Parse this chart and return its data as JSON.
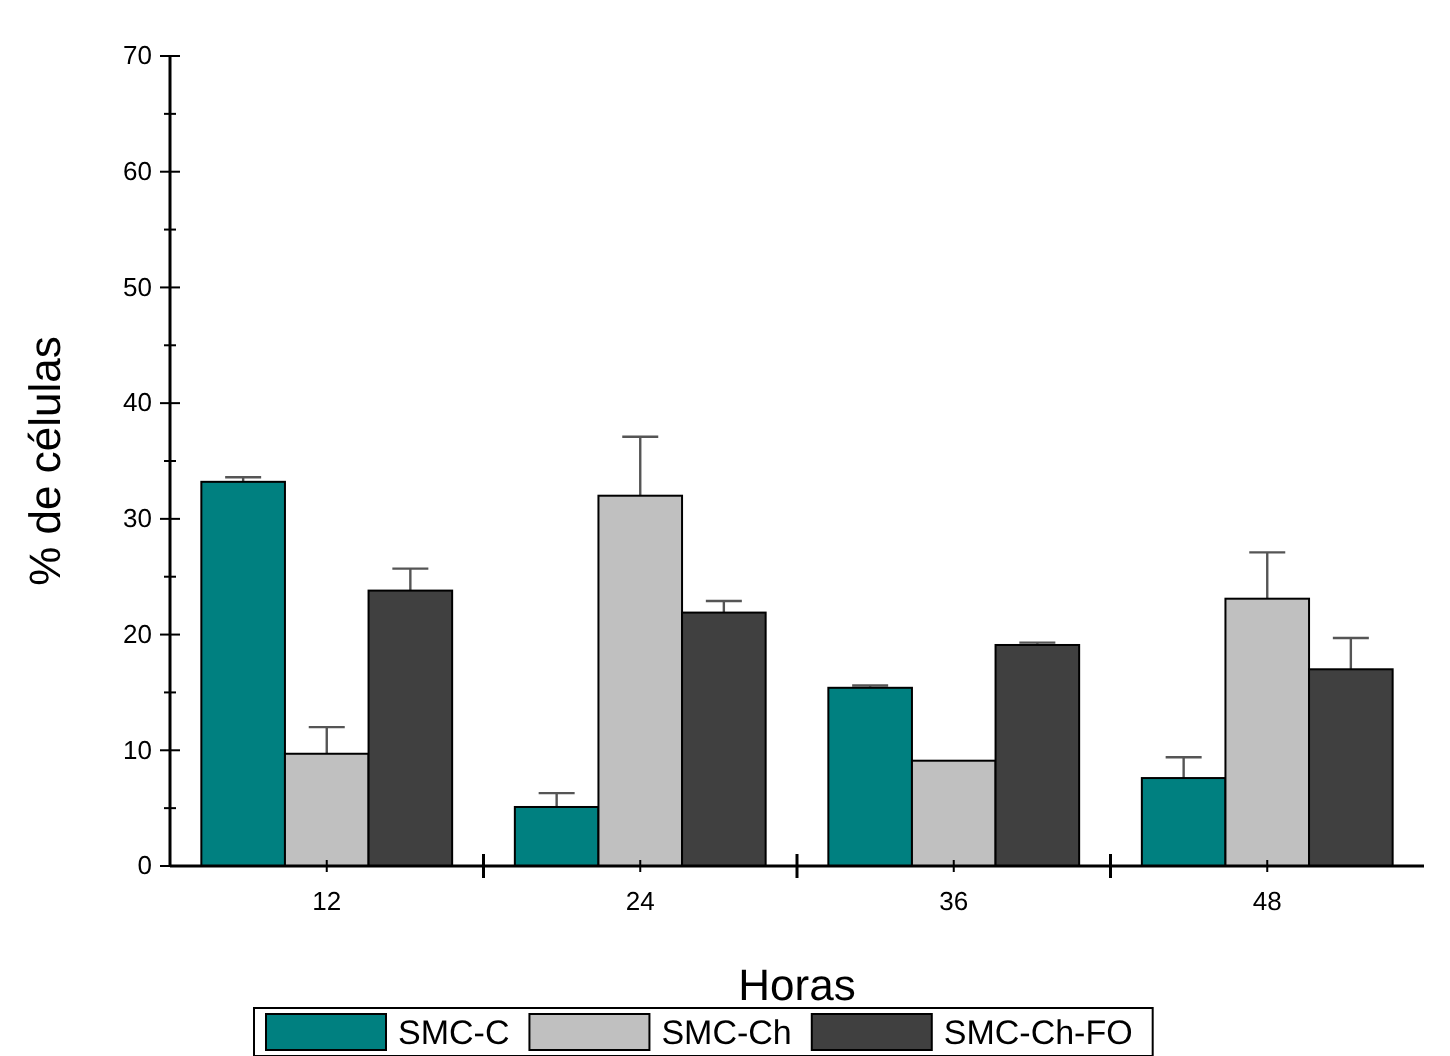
{
  "chart_data": {
    "type": "bar",
    "xlabel": "Horas",
    "ylabel": "% de células",
    "categories": [
      "12",
      "24",
      "36",
      "48"
    ],
    "series": [
      {
        "name": "SMC-C",
        "color": "#008080",
        "values": [
          33.2,
          5.1,
          15.4,
          7.6
        ],
        "errors": [
          0.4,
          1.2,
          0.2,
          1.8
        ]
      },
      {
        "name": "SMC-Ch",
        "color": "#c0c0c0",
        "values": [
          9.7,
          32.0,
          9.1,
          23.1
        ],
        "errors": [
          2.3,
          5.1,
          null,
          4.0
        ]
      },
      {
        "name": "SMC-Ch-FO",
        "color": "#404040",
        "values": [
          23.8,
          21.9,
          19.1,
          17.0
        ],
        "errors": [
          1.9,
          1.0,
          0.2,
          2.7
        ]
      }
    ],
    "ylim": [
      0,
      70
    ],
    "yticks": [
      0,
      {
        "value": 5,
        "label": null
      },
      10,
      {
        "value": 15,
        "label": null
      },
      20,
      {
        "value": 25,
        "label": null
      },
      30,
      {
        "value": 35,
        "label": null
      },
      40,
      {
        "value": 45,
        "label": null
      },
      50,
      {
        "value": 55,
        "label": null
      },
      60,
      {
        "value": 65,
        "label": null
      },
      70
    ],
    "grid": false,
    "legend": "bottom"
  }
}
